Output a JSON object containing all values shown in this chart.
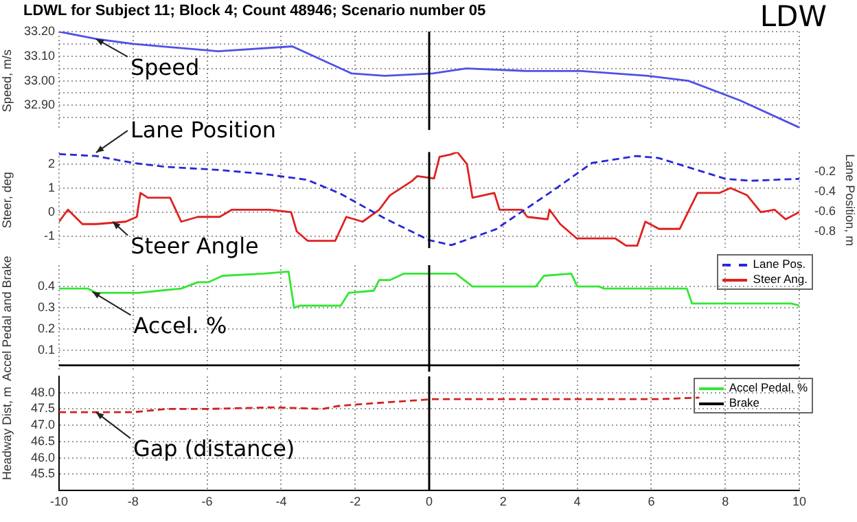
{
  "chart_data": [
    {
      "type": "line",
      "title": "LDWL for Subject 11; Block 4; Count 48946; Scenario number 05",
      "ylabel": "Speed, m/s",
      "annotations": [
        "LDW",
        {
          "text": "Speed",
          "x": -9,
          "y": 33.17
        }
      ],
      "x": [
        -10,
        -9,
        -8,
        -5.7,
        -3.7,
        -2.1,
        -1.2,
        0.1,
        1,
        2.6,
        4.1,
        5.9,
        7,
        8.4,
        10
      ],
      "values": [
        33.2,
        33.17,
        33.15,
        33.12,
        33.14,
        33.03,
        33.02,
        33.03,
        33.05,
        33.04,
        33.04,
        33.02,
        33.0,
        32.92,
        32.81
      ],
      "color": "#5050e8",
      "xlim": [
        -10,
        10
      ],
      "xticks": [
        -10,
        -8,
        -6,
        -4,
        -2,
        0,
        2,
        4,
        6,
        8,
        10
      ],
      "ylim": [
        32.8,
        33.2
      ],
      "yticks": [
        {
          "value": 32.85,
          "label": null
        },
        {
          "value": 32.9,
          "label": "32.90"
        },
        {
          "value": 32.95,
          "label": null
        },
        {
          "value": 33.0,
          "label": "33.00"
        },
        {
          "value": 33.05,
          "label": null
        },
        {
          "value": 33.1,
          "label": "33.10"
        },
        {
          "value": 33.15,
          "label": null
        },
        {
          "value": 33.2,
          "label": "33.20"
        }
      ],
      "tick_labels": "y",
      "grid": true,
      "legend": false,
      "ref_lines": [
        {
          "axis": "x",
          "value": 0,
          "color": "#000000"
        }
      ]
    },
    {
      "type": "line",
      "ylabel": "Steer, deg",
      "y2label": "Lane Position, m",
      "annotations": [
        {
          "text": "Lane Position",
          "x": -9,
          "y": 2.48
        },
        {
          "text": "Steer Angle",
          "x": -8.55,
          "y": -0.4
        }
      ],
      "series": [
        {
          "name": "Lane Pos.",
          "color": "#2828d8",
          "axis": "y2",
          "line_style": "dashed",
          "x": [
            -10,
            -9,
            -8,
            -7.1,
            -5.7,
            -4.5,
            -3.3,
            -2.4,
            -1.2,
            0,
            0.6,
            1.8,
            3.3,
            4.4,
            5.6,
            6.2,
            8,
            8.7,
            10
          ],
          "values": [
            -0.02,
            -0.04,
            -0.11,
            -0.15,
            -0.18,
            -0.22,
            -0.28,
            -0.42,
            -0.67,
            -0.89,
            -0.94,
            -0.78,
            -0.4,
            -0.11,
            -0.04,
            -0.06,
            -0.27,
            -0.29,
            -0.27
          ]
        },
        {
          "name": "Steer Ang.",
          "color": "#e02020",
          "x": [
            -10,
            -9.76,
            -9.37,
            -9,
            -8.2,
            -7.9,
            -7.8,
            -7.6,
            -7.0,
            -6.7,
            -6.25,
            -5.66,
            -5.33,
            -4.32,
            -3.73,
            -3.58,
            -3.28,
            -2.54,
            -2.24,
            -1.8,
            -1.35,
            -1.06,
            -0.46,
            -0.32,
            0.13,
            0.28,
            0.58,
            0.76,
            1.02,
            1.17,
            1.76,
            1.9,
            2.5,
            2.65,
            3.2,
            3.25,
            3.54,
            3.99,
            5.03,
            5.32,
            5.62,
            5.84,
            6.21,
            6.77,
            7.25,
            7.85,
            8.14,
            8.59,
            8.96,
            9.33,
            9.63,
            10
          ],
          "values": [
            -0.4,
            0.1,
            -0.5,
            -0.5,
            -0.4,
            -0.2,
            0.8,
            0.6,
            0.6,
            -0.4,
            -0.2,
            -0.2,
            0.1,
            0.1,
            0,
            -0.8,
            -1.2,
            -1.2,
            -0.2,
            -0.4,
            0.1,
            0.7,
            1.3,
            1.5,
            1.4,
            2.3,
            2.4,
            2.5,
            2.0,
            0.6,
            0.8,
            0.1,
            0.1,
            -0.2,
            -0.3,
            0.1,
            -0.5,
            -1.1,
            -1.1,
            -1.4,
            -1.4,
            -0.4,
            -0.7,
            -0.7,
            0.8,
            0.8,
            1.0,
            0.7,
            0,
            0.1,
            -0.3,
            0
          ]
        }
      ],
      "xlim": [
        -10,
        10
      ],
      "xticks": [
        -10,
        -8,
        -6,
        -4,
        -2,
        0,
        2,
        4,
        6,
        8,
        10
      ],
      "ylim": [
        -1.5,
        2.5
      ],
      "yticks": [
        -1,
        0,
        1,
        2
      ],
      "y2lim": [
        -0.97,
        0
      ],
      "y2ticks": [
        -0.8,
        -0.6,
        -0.4,
        -0.2
      ],
      "tick_labels": "y",
      "grid": true,
      "legend": "bottom right",
      "ref_lines": [
        {
          "axis": "x",
          "value": 0,
          "color": "#000000"
        }
      ]
    },
    {
      "type": "line",
      "ylabel": "Accel Pedal and Brake",
      "annotations": [
        {
          "text": "Accel. %",
          "x": -9.1,
          "y": 0.375
        }
      ],
      "series": [
        {
          "name": "Accel Pedal, %",
          "color": "#33e633",
          "x": [
            -10,
            -9.22,
            -9,
            -7.85,
            -7.29,
            -6.7,
            -6.25,
            -5.96,
            -5.58,
            -4.47,
            -3.8,
            -3.65,
            -3.5,
            -2.39,
            -2.17,
            -1.5,
            -1.35,
            -1.06,
            -0.69,
            0.72,
            1.17,
            2.88,
            3.1,
            3.84,
            4.0,
            4.58,
            4.73,
            6.36,
            6.96,
            7.1,
            9.78,
            10
          ],
          "values": [
            0.39,
            0.39,
            0.37,
            0.37,
            0.38,
            0.39,
            0.42,
            0.42,
            0.45,
            0.46,
            0.47,
            0.3,
            0.31,
            0.31,
            0.37,
            0.38,
            0.43,
            0.43,
            0.46,
            0.46,
            0.4,
            0.4,
            0.45,
            0.46,
            0.4,
            0.4,
            0.39,
            0.39,
            0.39,
            0.32,
            0.32,
            0.31
          ]
        },
        {
          "name": "Brake",
          "color": "#000000",
          "x": [
            -10,
            10
          ],
          "values": [
            0.03,
            0.03
          ]
        }
      ],
      "xlim": [
        -10,
        10
      ],
      "xticks": [
        -10,
        -8,
        -6,
        -4,
        -2,
        0,
        2,
        4,
        6,
        8,
        10
      ],
      "ylim": [
        0,
        0.5
      ],
      "yticks": [
        0.1,
        0.2,
        0.3,
        0.4
      ],
      "tick_labels": "y",
      "grid": true,
      "legend": "bottom right",
      "ref_lines": [
        {
          "axis": "x",
          "value": 0,
          "color": "#000000"
        }
      ]
    },
    {
      "type": "line",
      "ylabel": "Headway Dist, m",
      "annotations": [
        {
          "text": "Gap (distance)",
          "x": -9,
          "y": 47.4
        }
      ],
      "x": [
        -10,
        -8,
        -7.1,
        -6,
        -4.2,
        -2.9,
        -2.4,
        -1.2,
        0.1,
        1.8,
        3.2,
        4.7,
        6.2,
        7.3
      ],
      "values": [
        47.4,
        47.4,
        47.5,
        47.5,
        47.55,
        47.5,
        47.6,
        47.7,
        47.8,
        47.8,
        47.8,
        47.8,
        47.8,
        47.85
      ],
      "color": "#d42020",
      "line_style": "dashed",
      "xlim": [
        -10,
        10
      ],
      "xticks": [
        -10,
        -8,
        -6,
        -4,
        -2,
        0,
        2,
        4,
        6,
        8,
        10
      ],
      "ylim": [
        45,
        48.5
      ],
      "yticks": [
        {
          "value": 45.5,
          "label": "45.5"
        },
        {
          "value": 46,
          "label": "46.0"
        },
        {
          "value": 46.5,
          "label": "46.5"
        },
        {
          "value": 47,
          "label": "47.0"
        },
        {
          "value": 47.5,
          "label": "47.5"
        },
        {
          "value": 48,
          "label": "48.0"
        }
      ],
      "grid": true,
      "legend": false,
      "ref_lines": [
        {
          "axis": "x",
          "value": 0,
          "color": "#000000"
        }
      ]
    }
  ]
}
